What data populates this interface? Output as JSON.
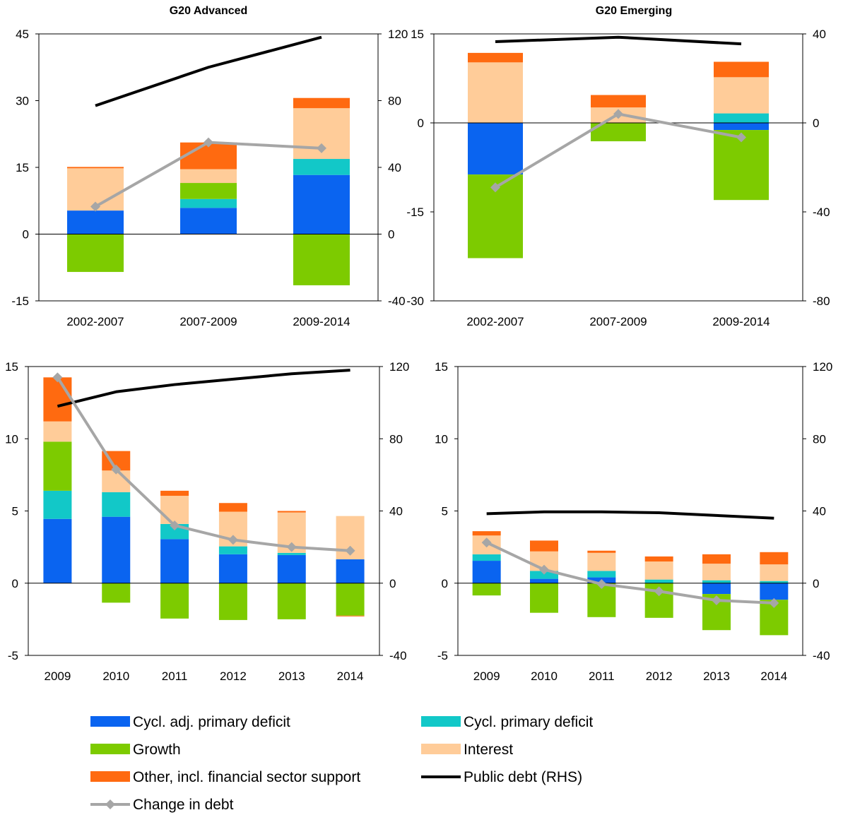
{
  "colors": {
    "cycl_adj_primary_deficit": "#0A64F0",
    "cycl_primary_deficit": "#12C8C8",
    "growth": "#7DCB00",
    "interest": "#FFCC99",
    "other": "#FF6A10",
    "public_debt": "#000000",
    "change_in_debt": "#A6A6A6"
  },
  "legend": {
    "cycl_adj": "Cycl. adj. primary deficit",
    "cycl": "Cycl. primary deficit",
    "growth": "Growth",
    "interest": "Interest",
    "other": "Other, incl. financial sector support",
    "debt": "Public debt (RHS)",
    "change": "Change in debt"
  },
  "chart_data": [
    {
      "type": "bar",
      "title": "G20 Advanced",
      "categories": [
        "2002-2007",
        "2007-2009",
        "2009-2014"
      ],
      "ylim": [
        -15,
        45
      ],
      "yticks": [
        "-15",
        "0",
        "15",
        "30",
        "45"
      ],
      "y2lim": [
        -40,
        120
      ],
      "y2ticks": [
        "-40",
        "0",
        "40",
        "80",
        "120"
      ],
      "stacked": true,
      "series": [
        {
          "name": "Cycl. adj. primary deficit",
          "key": "cycl_adj_primary_deficit",
          "values": [
            5.3,
            5.9,
            13.3
          ]
        },
        {
          "name": "Cycl. primary deficit",
          "key": "cycl_primary_deficit",
          "values": [
            0,
            2.0,
            3.6
          ]
        },
        {
          "name": "Growth",
          "key": "growth",
          "values": [
            -8.5,
            3.6,
            -11.5
          ]
        },
        {
          "name": "Interest",
          "key": "interest",
          "values": [
            9.5,
            3.1,
            11.4
          ]
        },
        {
          "name": "Other, incl. financial sector support",
          "key": "other",
          "values": [
            0.3,
            6.0,
            2.3
          ]
        }
      ],
      "lines": [
        {
          "name": "Public debt (RHS)",
          "key": "public_debt",
          "axis": "right",
          "values": [
            77,
            100,
            118
          ]
        },
        {
          "name": "Change in debt",
          "key": "change_in_debt",
          "axis": "right",
          "values": [
            16.5,
            55,
            51.5
          ]
        }
      ]
    },
    {
      "type": "bar",
      "title": "G20 Emerging",
      "categories": [
        "2002-2007",
        "2007-2009",
        "2009-2014"
      ],
      "ylim": [
        -30,
        15
      ],
      "yticks": [
        "-30",
        "-15",
        "0",
        "15"
      ],
      "y2lim": [
        -80,
        40
      ],
      "y2ticks": [
        "-80",
        "-40",
        "0",
        "40"
      ],
      "stacked": true,
      "series": [
        {
          "name": "Cycl. adj. primary deficit",
          "key": "cycl_adj_primary_deficit",
          "values": [
            -8.7,
            0,
            -1.2
          ]
        },
        {
          "name": "Cycl. primary deficit",
          "key": "cycl_primary_deficit",
          "values": [
            0,
            0,
            1.6
          ]
        },
        {
          "name": "Growth",
          "key": "growth",
          "values": [
            -14.1,
            -3.1,
            -11.8
          ]
        },
        {
          "name": "Interest",
          "key": "interest",
          "values": [
            10.2,
            2.6,
            6.1
          ]
        },
        {
          "name": "Other, incl. financial sector support",
          "key": "other",
          "values": [
            1.6,
            2.1,
            2.6
          ]
        }
      ],
      "lines": [
        {
          "name": "Public debt (RHS)",
          "key": "public_debt",
          "axis": "right",
          "values": [
            36.5,
            38.5,
            35.5
          ]
        },
        {
          "name": "Change in debt",
          "key": "change_in_debt",
          "axis": "right",
          "values": [
            -29,
            4,
            -6.5
          ]
        }
      ]
    },
    {
      "type": "bar",
      "title": "",
      "categories": [
        "2009",
        "2010",
        "2011",
        "2012",
        "2013",
        "2014"
      ],
      "ylim": [
        -5,
        15
      ],
      "yticks": [
        "-5",
        "0",
        "5",
        "10",
        "15"
      ],
      "y2lim": [
        -40,
        120
      ],
      "y2ticks": [
        "-40",
        "0",
        "40",
        "80",
        "120"
      ],
      "stacked": true,
      "series": [
        {
          "name": "Cycl. adj. primary deficit",
          "key": "cycl_adj_primary_deficit",
          "values": [
            4.45,
            4.6,
            3.05,
            2.0,
            1.95,
            1.65
          ]
        },
        {
          "name": "Cycl. primary deficit",
          "key": "cycl_primary_deficit",
          "values": [
            1.95,
            1.7,
            1.05,
            0.55,
            0.15,
            0
          ]
        },
        {
          "name": "Growth",
          "key": "growth",
          "values": [
            3.4,
            -1.35,
            -2.45,
            -2.55,
            -2.5,
            -2.25
          ]
        },
        {
          "name": "Interest",
          "key": "interest",
          "values": [
            1.4,
            1.5,
            1.95,
            2.4,
            2.8,
            3.0
          ]
        },
        {
          "name": "Other, incl. financial sector support",
          "key": "other",
          "values": [
            3.05,
            1.35,
            0.35,
            0.6,
            0.1,
            -0.05
          ]
        }
      ],
      "lines": [
        {
          "name": "Public debt (RHS)",
          "key": "public_debt",
          "axis": "right",
          "values": [
            98,
            106,
            110,
            113,
            116,
            118
          ]
        },
        {
          "name": "Change in debt",
          "key": "change_in_debt",
          "axis": "right",
          "values": [
            114,
            63,
            32,
            24,
            20,
            18
          ]
        }
      ]
    },
    {
      "type": "bar",
      "title": "",
      "categories": [
        "2009",
        "2010",
        "2011",
        "2012",
        "2013",
        "2014"
      ],
      "ylim": [
        -5,
        15
      ],
      "yticks": [
        "-5",
        "0",
        "5",
        "10",
        "15"
      ],
      "y2lim": [
        -40,
        120
      ],
      "y2ticks": [
        "-40",
        "0",
        "40",
        "80",
        "120"
      ],
      "stacked": true,
      "series": [
        {
          "name": "Cycl. adj. primary deficit",
          "key": "cycl_adj_primary_deficit",
          "values": [
            1.55,
            0.3,
            0.4,
            0,
            -0.75,
            -1.15
          ]
        },
        {
          "name": "Cycl. primary deficit",
          "key": "cycl_primary_deficit",
          "values": [
            0.45,
            0.55,
            0.45,
            0.25,
            0.2,
            0.15
          ]
        },
        {
          "name": "Growth",
          "key": "growth",
          "values": [
            -0.85,
            -2.05,
            -2.35,
            -2.4,
            -2.5,
            -2.45
          ]
        },
        {
          "name": "Interest",
          "key": "interest",
          "values": [
            1.3,
            1.35,
            1.25,
            1.25,
            1.15,
            1.15
          ]
        },
        {
          "name": "Other, incl. financial sector support",
          "key": "other",
          "values": [
            0.3,
            0.75,
            0.15,
            0.35,
            0.65,
            0.85
          ]
        }
      ],
      "lines": [
        {
          "name": "Public debt (RHS)",
          "key": "public_debt",
          "axis": "right",
          "values": [
            38.5,
            39.5,
            39.5,
            39,
            37.5,
            36
          ]
        },
        {
          "name": "Change in debt",
          "key": "change_in_debt",
          "axis": "right",
          "values": [
            22.5,
            7.5,
            -0.5,
            -4.5,
            -9.5,
            -11
          ]
        }
      ]
    }
  ]
}
